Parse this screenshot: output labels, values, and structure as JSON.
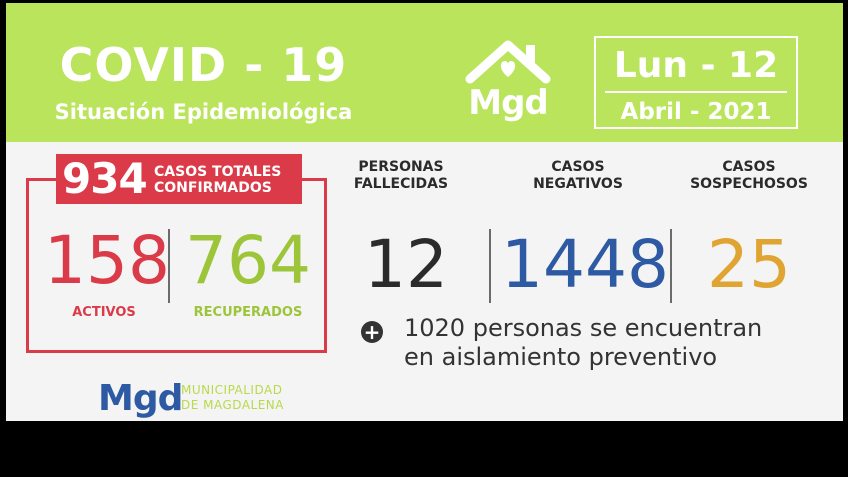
{
  "header": {
    "title": "COVID - 19",
    "subtitle": "Situación Epidemiológica",
    "logo_text": "Mgd",
    "date_day": "Lun - 12",
    "date_month": "Abril - 2021"
  },
  "totals": {
    "confirmed": "934",
    "confirmed_label_1": "CASOS TOTALES",
    "confirmed_label_2": "CONFIRMADOS",
    "active": "158",
    "active_label": "ACTIVOS",
    "recovered": "764",
    "recovered_label": "RECUPERADOS"
  },
  "stats": {
    "deaths_label_1": "PERSONAS",
    "deaths_label_2": "FALLECIDAS",
    "deaths": "12",
    "negative_label_1": "CASOS",
    "negative_label_2": "NEGATIVOS",
    "negative": "1448",
    "suspected_label_1": "CASOS",
    "suspected_label_2": "SOSPECHOSOS",
    "suspected": "25"
  },
  "note": {
    "icon": "+",
    "line_1": "1020 personas se encuentran",
    "line_2": "en aislamiento preventivo"
  },
  "footer": {
    "logo_text": "Mgd",
    "municipality_1": "MUNICIPALIDAD",
    "municipality_2": "DE MAGDALENA"
  },
  "colors": {
    "header_green": "#b9e45b",
    "red": "#db3a48",
    "green": "#9dc53a",
    "blue": "#2d5aa3",
    "orange": "#e0a432",
    "dark": "#2b2b2b"
  }
}
